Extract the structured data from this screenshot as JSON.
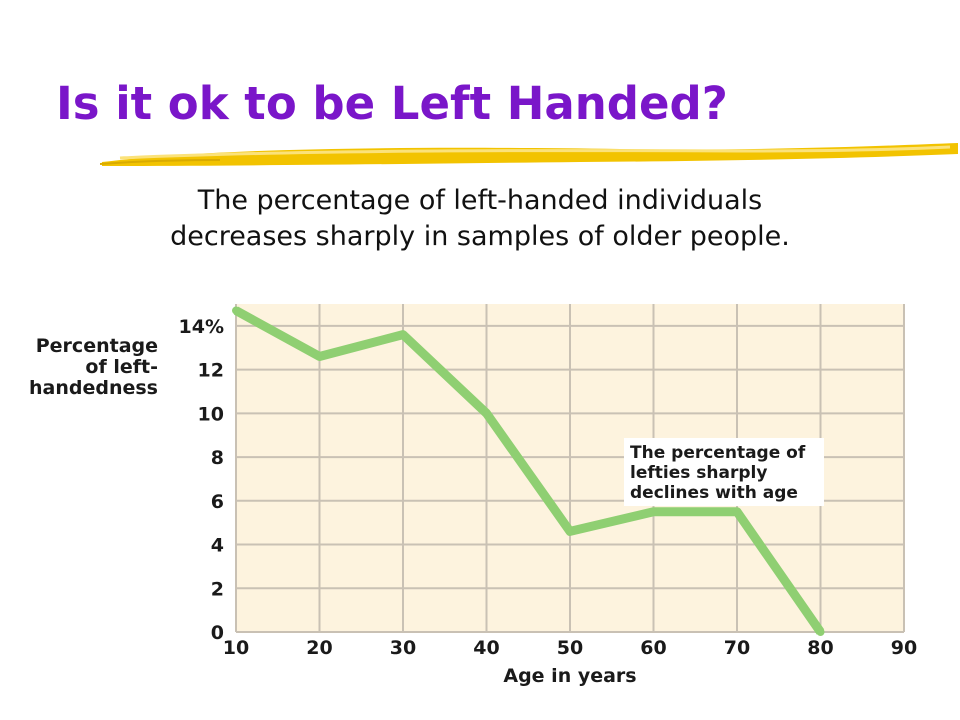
{
  "slide": {
    "title": "Is it ok to be Left Handed?",
    "subtitle_lines": [
      "The percentage of left-handed individuals",
      "decreases sharply in samples of older people."
    ],
    "title_color": "#7a16c9",
    "accent_stroke_color": "#f2c300"
  },
  "chart_data": {
    "type": "line",
    "ylabel": [
      "Percentage",
      "of left-",
      "handedness"
    ],
    "xlabel": "Age in years",
    "x": [
      10,
      20,
      30,
      40,
      50,
      60,
      70,
      80
    ],
    "series": [
      {
        "values": [
          14.7,
          12.6,
          13.6,
          10.0,
          4.6,
          5.5,
          5.5,
          0.0
        ],
        "color": "#8fcf72"
      }
    ],
    "xlim": [
      10,
      90
    ],
    "ylim": [
      0,
      15
    ],
    "xticks": [
      10,
      20,
      30,
      40,
      50,
      60,
      70,
      80,
      90
    ],
    "yticks": [
      0,
      2,
      4,
      6,
      8,
      10,
      12,
      14
    ],
    "ytick_labels": [
      "0",
      "2",
      "4",
      "6",
      "8",
      "10",
      "12",
      "14%"
    ],
    "grid": true,
    "plot_background": "#fdf3de",
    "grid_color": "#c9c1b4",
    "annotation": {
      "lines": [
        "The percentage of",
        "lefties sharply",
        "declines with age"
      ]
    }
  }
}
